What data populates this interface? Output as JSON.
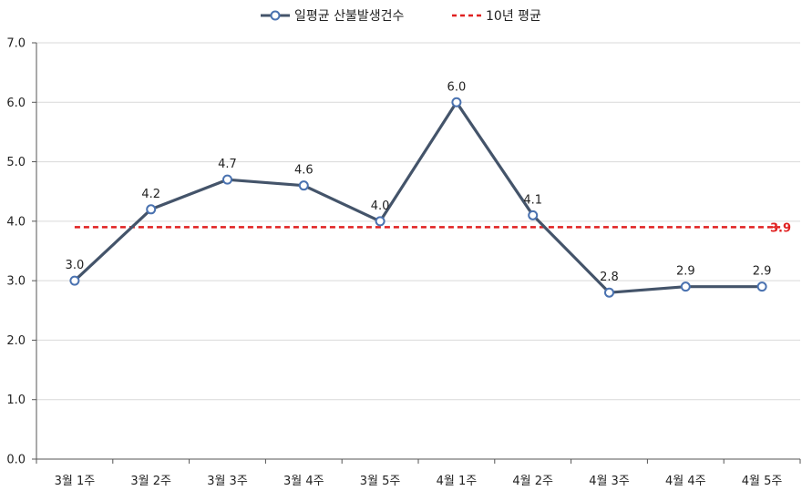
{
  "chart_data": {
    "type": "line",
    "categories": [
      "3월 1주",
      "3월 2주",
      "3월 3주",
      "3월 4주",
      "3월 5주",
      "4월 1주",
      "4월 2주",
      "4월 3주",
      "4월 4주",
      "4월 5주"
    ],
    "series": [
      {
        "name": "일평균 산불발생건수",
        "values": [
          3.0,
          4.2,
          4.7,
          4.6,
          4.0,
          6.0,
          4.1,
          2.8,
          2.9,
          2.9
        ],
        "labels": [
          "3.0",
          "4.2",
          "4.7",
          "4.6",
          "4.0",
          "6.0",
          "4.1",
          "2.8",
          "2.9",
          "2.9"
        ],
        "color": "#44546A",
        "marker": "circle"
      }
    ],
    "reference_line": {
      "name": "10년 평균",
      "value": 3.9,
      "label": "3.9",
      "color": "#E02020",
      "style": "dashed"
    },
    "ylim": [
      0,
      7
    ],
    "yticks": [
      "0.0",
      "1.0",
      "2.0",
      "3.0",
      "4.0",
      "5.0",
      "6.0",
      "7.0"
    ],
    "grid": true,
    "legend_position": "top-center"
  }
}
